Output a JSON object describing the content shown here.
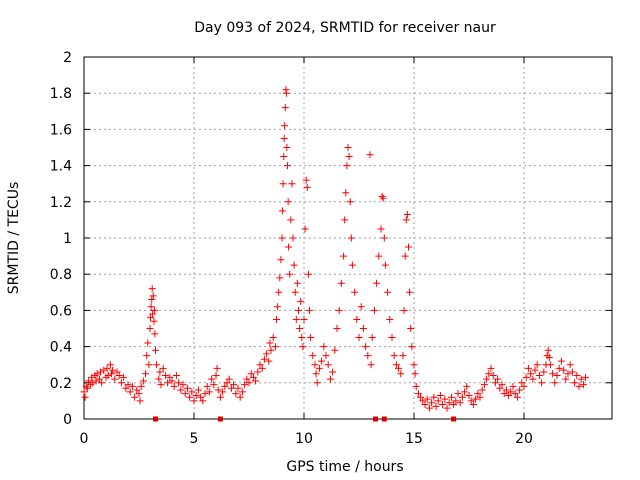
{
  "chart_data": {
    "type": "scatter",
    "title": "Day 093 of 2024, SRMTID for receiver naur",
    "xlabel": "GPS time / hours",
    "ylabel": "SRMTID / TECUs",
    "xlim": [
      0,
      24
    ],
    "ylim": [
      0,
      2
    ],
    "xticks": [
      0,
      5,
      10,
      15,
      20
    ],
    "xtick_labels": [
      "0",
      "5",
      "10",
      "15",
      "20"
    ],
    "yticks": [
      0,
      0.2,
      0.4,
      0.6,
      0.8,
      1,
      1.2,
      1.4,
      1.6,
      1.8,
      2
    ],
    "ytick_labels": [
      "0",
      "0.2",
      "0.4",
      "0.6",
      "0.8",
      "1",
      "1.2",
      "1.4",
      "1.6",
      "1.8",
      "2"
    ],
    "grid": true,
    "marker": "+",
    "color": "#ff0000",
    "data_gap_markers_x": [
      3.25,
      6.2,
      13.25,
      13.65,
      16.8
    ],
    "series": [
      {
        "name": "SRMTID",
        "points": [
          [
            0.0,
            0.15
          ],
          [
            0.05,
            0.12
          ],
          [
            0.1,
            0.18
          ],
          [
            0.15,
            0.17
          ],
          [
            0.2,
            0.21
          ],
          [
            0.3,
            0.19
          ],
          [
            0.35,
            0.23
          ],
          [
            0.4,
            0.2
          ],
          [
            0.5,
            0.24
          ],
          [
            0.55,
            0.21
          ],
          [
            0.6,
            0.25
          ],
          [
            0.7,
            0.22
          ],
          [
            0.75,
            0.26
          ],
          [
            0.8,
            0.2
          ],
          [
            0.9,
            0.27
          ],
          [
            1.0,
            0.23
          ],
          [
            1.05,
            0.28
          ],
          [
            1.1,
            0.24
          ],
          [
            1.2,
            0.3
          ],
          [
            1.25,
            0.25
          ],
          [
            1.3,
            0.27
          ],
          [
            1.4,
            0.22
          ],
          [
            1.5,
            0.26
          ],
          [
            1.6,
            0.24
          ],
          [
            1.7,
            0.2
          ],
          [
            1.8,
            0.23
          ],
          [
            1.9,
            0.17
          ],
          [
            2.0,
            0.19
          ],
          [
            2.1,
            0.15
          ],
          [
            2.2,
            0.18
          ],
          [
            2.3,
            0.12
          ],
          [
            2.4,
            0.16
          ],
          [
            2.5,
            0.14
          ],
          [
            2.55,
            0.1
          ],
          [
            2.6,
            0.18
          ],
          [
            2.7,
            0.21
          ],
          [
            2.8,
            0.25
          ],
          [
            2.85,
            0.35
          ],
          [
            2.9,
            0.42
          ],
          [
            2.95,
            0.3
          ],
          [
            3.0,
            0.5
          ],
          [
            3.02,
            0.56
          ],
          [
            3.05,
            0.62
          ],
          [
            3.08,
            0.66
          ],
          [
            3.1,
            0.72
          ],
          [
            3.12,
            0.58
          ],
          [
            3.15,
            0.68
          ],
          [
            3.18,
            0.54
          ],
          [
            3.2,
            0.6
          ],
          [
            3.22,
            0.47
          ],
          [
            3.25,
            0.38
          ],
          [
            3.3,
            0.3
          ],
          [
            3.4,
            0.22
          ],
          [
            3.45,
            0.26
          ],
          [
            3.5,
            0.19
          ],
          [
            3.6,
            0.28
          ],
          [
            3.7,
            0.24
          ],
          [
            3.8,
            0.2
          ],
          [
            3.9,
            0.23
          ],
          [
            4.0,
            0.21
          ],
          [
            4.1,
            0.18
          ],
          [
            4.2,
            0.24
          ],
          [
            4.3,
            0.2
          ],
          [
            4.4,
            0.16
          ],
          [
            4.5,
            0.19
          ],
          [
            4.6,
            0.14
          ],
          [
            4.7,
            0.17
          ],
          [
            4.8,
            0.12
          ],
          [
            4.9,
            0.15
          ],
          [
            5.0,
            0.1
          ],
          [
            5.1,
            0.13
          ],
          [
            5.2,
            0.16
          ],
          [
            5.3,
            0.12
          ],
          [
            5.4,
            0.1
          ],
          [
            5.5,
            0.14
          ],
          [
            5.6,
            0.18
          ],
          [
            5.7,
            0.15
          ],
          [
            5.8,
            0.22
          ],
          [
            5.9,
            0.19
          ],
          [
            6.0,
            0.24
          ],
          [
            6.05,
            0.28
          ],
          [
            6.1,
            0.16
          ],
          [
            6.2,
            0.12
          ],
          [
            6.3,
            0.15
          ],
          [
            6.4,
            0.18
          ],
          [
            6.5,
            0.2
          ],
          [
            6.6,
            0.22
          ],
          [
            6.7,
            0.17
          ],
          [
            6.8,
            0.19
          ],
          [
            6.9,
            0.14
          ],
          [
            7.0,
            0.17
          ],
          [
            7.1,
            0.12
          ],
          [
            7.2,
            0.15
          ],
          [
            7.3,
            0.19
          ],
          [
            7.4,
            0.22
          ],
          [
            7.5,
            0.2
          ],
          [
            7.6,
            0.25
          ],
          [
            7.7,
            0.23
          ],
          [
            7.8,
            0.21
          ],
          [
            7.9,
            0.26
          ],
          [
            8.0,
            0.3
          ],
          [
            8.1,
            0.28
          ],
          [
            8.2,
            0.33
          ],
          [
            8.3,
            0.36
          ],
          [
            8.4,
            0.32
          ],
          [
            8.45,
            0.42
          ],
          [
            8.5,
            0.38
          ],
          [
            8.6,
            0.45
          ],
          [
            8.7,
            0.4
          ],
          [
            8.75,
            0.55
          ],
          [
            8.8,
            0.62
          ],
          [
            8.85,
            0.7
          ],
          [
            8.9,
            0.78
          ],
          [
            8.95,
            0.88
          ],
          [
            9.0,
            1.0
          ],
          [
            9.02,
            1.15
          ],
          [
            9.05,
            1.3
          ],
          [
            9.08,
            1.45
          ],
          [
            9.1,
            1.55
          ],
          [
            9.12,
            1.62
          ],
          [
            9.15,
            1.72
          ],
          [
            9.18,
            1.82
          ],
          [
            9.2,
            1.8
          ],
          [
            9.22,
            1.5
          ],
          [
            9.25,
            1.4
          ],
          [
            9.28,
            1.2
          ],
          [
            9.3,
            0.95
          ],
          [
            9.35,
            0.8
          ],
          [
            9.4,
            1.1
          ],
          [
            9.45,
            1.3
          ],
          [
            9.5,
            1.0
          ],
          [
            9.55,
            0.85
          ],
          [
            9.6,
            0.7
          ],
          [
            9.65,
            0.55
          ],
          [
            9.7,
            0.75
          ],
          [
            9.75,
            0.6
          ],
          [
            9.8,
            0.5
          ],
          [
            9.85,
            0.65
          ],
          [
            9.9,
            0.45
          ],
          [
            9.95,
            0.4
          ],
          [
            10.0,
            0.55
          ],
          [
            10.05,
            1.05
          ],
          [
            10.1,
            1.32
          ],
          [
            10.15,
            1.28
          ],
          [
            10.2,
            0.8
          ],
          [
            10.25,
            0.6
          ],
          [
            10.3,
            0.45
          ],
          [
            10.4,
            0.35
          ],
          [
            10.5,
            0.3
          ],
          [
            10.55,
            0.25
          ],
          [
            10.6,
            0.2
          ],
          [
            10.7,
            0.28
          ],
          [
            10.8,
            0.32
          ],
          [
            10.9,
            0.4
          ],
          [
            11.0,
            0.35
          ],
          [
            11.1,
            0.3
          ],
          [
            11.2,
            0.22
          ],
          [
            11.3,
            0.26
          ],
          [
            11.4,
            0.38
          ],
          [
            11.5,
            0.5
          ],
          [
            11.6,
            0.6
          ],
          [
            11.7,
            0.75
          ],
          [
            11.8,
            0.9
          ],
          [
            11.85,
            1.1
          ],
          [
            11.9,
            1.25
          ],
          [
            11.95,
            1.4
          ],
          [
            12.0,
            1.5
          ],
          [
            12.05,
            1.45
          ],
          [
            12.1,
            1.2
          ],
          [
            12.15,
            1.0
          ],
          [
            12.2,
            0.85
          ],
          [
            12.3,
            0.7
          ],
          [
            12.4,
            0.55
          ],
          [
            12.5,
            0.45
          ],
          [
            12.6,
            0.62
          ],
          [
            12.7,
            0.5
          ],
          [
            12.8,
            0.4
          ],
          [
            12.9,
            0.35
          ],
          [
            13.0,
            1.46
          ],
          [
            13.05,
            0.3
          ],
          [
            13.1,
            0.45
          ],
          [
            13.2,
            0.6
          ],
          [
            13.3,
            0.75
          ],
          [
            13.4,
            0.9
          ],
          [
            13.5,
            1.05
          ],
          [
            13.55,
            1.23
          ],
          [
            13.6,
            1.22
          ],
          [
            13.65,
            1.0
          ],
          [
            13.7,
            0.85
          ],
          [
            13.8,
            0.7
          ],
          [
            13.9,
            0.55
          ],
          [
            14.0,
            0.45
          ],
          [
            14.1,
            0.35
          ],
          [
            14.2,
            0.3
          ],
          [
            14.3,
            0.28
          ],
          [
            14.4,
            0.25
          ],
          [
            14.5,
            0.35
          ],
          [
            14.55,
            0.6
          ],
          [
            14.6,
            0.9
          ],
          [
            14.65,
            1.1
          ],
          [
            14.7,
            1.13
          ],
          [
            14.75,
            0.95
          ],
          [
            14.8,
            0.7
          ],
          [
            14.85,
            0.5
          ],
          [
            14.9,
            0.4
          ],
          [
            15.0,
            0.3
          ],
          [
            15.05,
            0.25
          ],
          [
            15.1,
            0.18
          ],
          [
            15.2,
            0.14
          ],
          [
            15.3,
            0.12
          ],
          [
            15.4,
            0.1
          ],
          [
            15.5,
            0.08
          ],
          [
            15.6,
            0.11
          ],
          [
            15.7,
            0.06
          ],
          [
            15.8,
            0.09
          ],
          [
            15.9,
            0.12
          ],
          [
            16.0,
            0.07
          ],
          [
            16.1,
            0.1
          ],
          [
            16.2,
            0.13
          ],
          [
            16.3,
            0.08
          ],
          [
            16.4,
            0.11
          ],
          [
            16.5,
            0.06
          ],
          [
            16.6,
            0.09
          ],
          [
            16.7,
            0.12
          ],
          [
            16.8,
            0.08
          ],
          [
            16.9,
            0.1
          ],
          [
            17.0,
            0.14
          ],
          [
            17.1,
            0.09
          ],
          [
            17.2,
            0.12
          ],
          [
            17.3,
            0.15
          ],
          [
            17.4,
            0.18
          ],
          [
            17.5,
            0.13
          ],
          [
            17.6,
            0.1
          ],
          [
            17.7,
            0.08
          ],
          [
            17.8,
            0.11
          ],
          [
            17.9,
            0.14
          ],
          [
            18.0,
            0.12
          ],
          [
            18.1,
            0.16
          ],
          [
            18.2,
            0.19
          ],
          [
            18.3,
            0.22
          ],
          [
            18.4,
            0.25
          ],
          [
            18.5,
            0.28
          ],
          [
            18.6,
            0.24
          ],
          [
            18.7,
            0.2
          ],
          [
            18.8,
            0.22
          ],
          [
            18.9,
            0.17
          ],
          [
            19.0,
            0.19
          ],
          [
            19.1,
            0.14
          ],
          [
            19.2,
            0.16
          ],
          [
            19.3,
            0.13
          ],
          [
            19.4,
            0.15
          ],
          [
            19.5,
            0.18
          ],
          [
            19.6,
            0.14
          ],
          [
            19.7,
            0.12
          ],
          [
            19.8,
            0.16
          ],
          [
            19.9,
            0.2
          ],
          [
            20.0,
            0.18
          ],
          [
            20.1,
            0.23
          ],
          [
            20.2,
            0.28
          ],
          [
            20.3,
            0.25
          ],
          [
            20.4,
            0.22
          ],
          [
            20.5,
            0.27
          ],
          [
            20.6,
            0.3
          ],
          [
            20.7,
            0.24
          ],
          [
            20.8,
            0.2
          ],
          [
            20.9,
            0.26
          ],
          [
            21.0,
            0.3
          ],
          [
            21.05,
            0.35
          ],
          [
            21.1,
            0.38
          ],
          [
            21.15,
            0.34
          ],
          [
            21.2,
            0.3
          ],
          [
            21.3,
            0.25
          ],
          [
            21.4,
            0.2
          ],
          [
            21.5,
            0.24
          ],
          [
            21.6,
            0.28
          ],
          [
            21.7,
            0.32
          ],
          [
            21.8,
            0.27
          ],
          [
            21.9,
            0.22
          ],
          [
            22.0,
            0.25
          ],
          [
            22.1,
            0.3
          ],
          [
            22.2,
            0.26
          ],
          [
            22.3,
            0.2
          ],
          [
            22.4,
            0.24
          ],
          [
            22.5,
            0.18
          ],
          [
            22.6,
            0.22
          ],
          [
            22.7,
            0.19
          ],
          [
            22.8,
            0.23
          ]
        ]
      }
    ]
  }
}
